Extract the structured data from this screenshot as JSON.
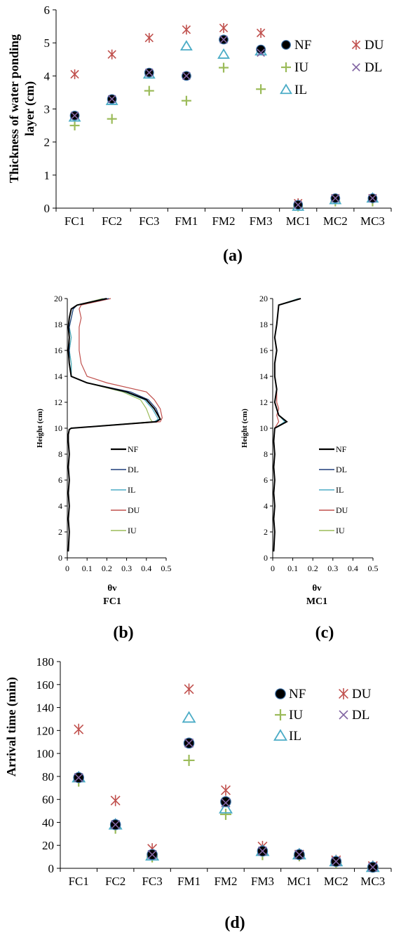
{
  "colors": {
    "NF": "#000000",
    "DU": "#c0504d",
    "IU": "#9bbb59",
    "DL": "#8064a2",
    "IL": "#4bacc6",
    "NF_line": "#000000",
    "DL_line": "#1f3d7a",
    "IL_line": "#4bacc6",
    "DU_line": "#c0504d",
    "IU_line": "#9bbb59"
  },
  "marker_shapes": {
    "NF": "filled-circle",
    "DU": "asterisk",
    "IU": "plus",
    "DL": "x-cross",
    "IL": "open-triangle"
  },
  "chart_data": [
    {
      "panel": "(a)",
      "type": "scatter",
      "ylabel": "Thickness of water ponding layer (cm)",
      "ylabel_lines": [
        "Thickness of water ponding",
        "layer (cm)"
      ],
      "ylim": [
        0,
        6
      ],
      "yticks": [
        "0",
        "1",
        "2",
        "3",
        "4",
        "5",
        "6"
      ],
      "categories": [
        "FC1",
        "FC2",
        "FC3",
        "FM1",
        "FM2",
        "FM3",
        "MC1",
        "MC2",
        "MC3"
      ],
      "legend": [
        "NF",
        "DU",
        "IU",
        "DL",
        "IL"
      ],
      "legend_position": "right",
      "series": [
        {
          "name": "NF",
          "values": [
            2.8,
            3.3,
            4.1,
            4.0,
            5.1,
            4.8,
            0.1,
            0.3,
            0.3
          ]
        },
        {
          "name": "DU",
          "values": [
            4.05,
            4.65,
            5.15,
            5.4,
            5.45,
            5.3,
            0.15,
            0.3,
            0.3
          ]
        },
        {
          "name": "IU",
          "values": [
            2.5,
            2.7,
            3.55,
            3.25,
            4.25,
            3.6,
            0.05,
            0.2,
            0.2
          ]
        },
        {
          "name": "DL",
          "values": [
            2.8,
            3.3,
            4.1,
            4.0,
            5.1,
            4.7,
            0.1,
            0.3,
            0.3
          ]
        },
        {
          "name": "IL",
          "values": [
            2.75,
            3.25,
            4.05,
            4.9,
            4.65,
            4.75,
            0.05,
            0.25,
            0.3
          ]
        }
      ]
    },
    {
      "panel": "(b)",
      "type": "line",
      "caption": "FC1",
      "xlabel": "θv",
      "ylabel": "Height (cm)",
      "xlim": [
        0,
        0.5
      ],
      "ylim": [
        0,
        20
      ],
      "xticks": [
        "0",
        "0.1",
        "0.2",
        "0.3",
        "0.4",
        "0.5"
      ],
      "yticks": [
        "0",
        "2",
        "4",
        "6",
        "8",
        "10",
        "12",
        "14",
        "16",
        "18",
        "20"
      ],
      "legend": [
        "NF",
        "DL",
        "IL",
        "DU",
        "IU"
      ],
      "series": [
        {
          "name": "NF",
          "x": [
            0.005,
            0.01,
            0.005,
            0.01,
            0.005,
            0.01,
            0.005,
            0.01,
            0.005,
            0.005,
            0.01,
            0.02,
            0.45,
            0.47,
            0.44,
            0.4,
            0.3,
            0.1,
            0.02,
            0.01,
            0.005,
            0.01,
            0.005,
            0.01,
            0.02,
            0.05,
            0.2
          ],
          "y": [
            0.5,
            2,
            3,
            4,
            5,
            6,
            7,
            8,
            9,
            9.5,
            9.9,
            10,
            10.5,
            10.7,
            11.5,
            12.2,
            12.8,
            13.5,
            14,
            15,
            16,
            17,
            17.8,
            18.5,
            19.2,
            19.5,
            20
          ]
        },
        {
          "name": "DL",
          "x": [
            0.005,
            0.01,
            0.005,
            0.01,
            0.005,
            0.01,
            0.005,
            0.01,
            0.005,
            0.005,
            0.01,
            0.02,
            0.45,
            0.47,
            0.45,
            0.41,
            0.32,
            0.1,
            0.02,
            0.01,
            0.01,
            0.01,
            0.01,
            0.02,
            0.03,
            0.05,
            0.21
          ],
          "y": [
            0.5,
            2,
            3,
            4,
            5,
            6,
            7,
            8,
            9,
            9.5,
            9.9,
            10,
            10.5,
            10.7,
            11.5,
            12.2,
            12.8,
            13.5,
            14,
            15,
            16,
            17,
            17.8,
            18.5,
            19.2,
            19.5,
            20
          ]
        },
        {
          "name": "IL",
          "x": [
            0.005,
            0.01,
            0.005,
            0.01,
            0.005,
            0.01,
            0.005,
            0.01,
            0.005,
            0.005,
            0.01,
            0.02,
            0.44,
            0.46,
            0.43,
            0.39,
            0.29,
            0.1,
            0.02,
            0.02,
            0.01,
            0.02,
            0.01,
            0.02,
            0.03,
            0.05,
            0.19
          ],
          "y": [
            0.5,
            2,
            3,
            4,
            5,
            6,
            7,
            8,
            9,
            9.5,
            9.9,
            10,
            10.5,
            10.7,
            11.5,
            12.2,
            12.8,
            13.5,
            14,
            15,
            16,
            17,
            17.8,
            18.5,
            19.2,
            19.5,
            20
          ]
        },
        {
          "name": "DU",
          "x": [
            0.005,
            0.01,
            0.005,
            0.01,
            0.005,
            0.01,
            0.005,
            0.01,
            0.005,
            0.005,
            0.01,
            0.02,
            0.47,
            0.48,
            0.47,
            0.44,
            0.4,
            0.2,
            0.1,
            0.07,
            0.06,
            0.06,
            0.06,
            0.07,
            0.06,
            0.07,
            0.22
          ],
          "y": [
            0.5,
            2,
            3,
            4,
            5,
            6,
            7,
            8,
            9,
            9.5,
            9.9,
            10,
            10.5,
            10.8,
            11.5,
            12.2,
            12.8,
            13.5,
            14,
            15,
            16,
            17,
            17.8,
            18.5,
            19.2,
            19.5,
            20
          ]
        },
        {
          "name": "IU",
          "x": [
            0.005,
            0.01,
            0.005,
            0.01,
            0.005,
            0.01,
            0.005,
            0.01,
            0.005,
            0.005,
            0.01,
            0.02,
            0.43,
            0.42,
            0.4,
            0.37,
            0.28,
            0.1,
            0.02,
            0.02,
            0.01,
            0.02,
            0.01,
            0.02,
            0.03,
            0.05,
            0.18
          ],
          "y": [
            0.5,
            2,
            3,
            4,
            5,
            6,
            7,
            8,
            9,
            9.5,
            9.9,
            10,
            10.5,
            10.7,
            11.5,
            12.2,
            12.8,
            13.5,
            14,
            15,
            16,
            17,
            17.8,
            18.5,
            19.2,
            19.5,
            20
          ]
        }
      ]
    },
    {
      "panel": "(c)",
      "type": "line",
      "caption": "MC1",
      "xlabel": "θv",
      "ylabel": "Height (cm)",
      "xlim": [
        0,
        0.5
      ],
      "ylim": [
        0,
        20
      ],
      "xticks": [
        "0",
        "0.1",
        "0.2",
        "0.3",
        "0.4",
        "0.5"
      ],
      "yticks": [
        "0",
        "2",
        "4",
        "6",
        "8",
        "10",
        "12",
        "14",
        "16",
        "18",
        "20"
      ],
      "legend": [
        "NF",
        "DL",
        "IL",
        "DU",
        "IU"
      ],
      "series": [
        {
          "name": "NF",
          "x": [
            0.005,
            0.01,
            0.005,
            0.01,
            0.005,
            0.01,
            0.005,
            0.01,
            0.005,
            0.01,
            0.07,
            0.03,
            0.02,
            0.01,
            0.02,
            0.01,
            0.01,
            0.02,
            0.01,
            0.02,
            0.03,
            0.14
          ],
          "y": [
            0.5,
            2,
            3,
            4,
            5,
            6,
            7,
            8,
            9,
            10,
            10.5,
            11,
            11.5,
            12,
            13,
            14,
            15,
            16,
            17,
            18,
            19.5,
            20
          ]
        },
        {
          "name": "DL",
          "x": [
            0.005,
            0.01,
            0.005,
            0.01,
            0.005,
            0.01,
            0.005,
            0.01,
            0.005,
            0.01,
            0.07,
            0.03,
            0.02,
            0.01,
            0.02,
            0.01,
            0.01,
            0.02,
            0.01,
            0.02,
            0.03,
            0.14
          ],
          "y": [
            0.5,
            2,
            3,
            4,
            5,
            6,
            7,
            8,
            9,
            10,
            10.5,
            11,
            11.5,
            12,
            13,
            14,
            15,
            16,
            17,
            18,
            19.5,
            20
          ]
        },
        {
          "name": "IL",
          "x": [
            0.005,
            0.01,
            0.005,
            0.01,
            0.005,
            0.01,
            0.005,
            0.01,
            0.005,
            0.01,
            0.06,
            0.03,
            0.02,
            0.01,
            0.02,
            0.01,
            0.01,
            0.02,
            0.01,
            0.02,
            0.03,
            0.13
          ],
          "y": [
            0.5,
            2,
            3,
            4,
            5,
            6,
            7,
            8,
            9,
            10,
            10.5,
            11,
            11.5,
            12,
            13,
            14,
            15,
            16,
            17,
            18,
            19.5,
            20
          ]
        },
        {
          "name": "DU",
          "x": [
            0.005,
            0.01,
            0.005,
            0.01,
            0.005,
            0.01,
            0.005,
            0.01,
            0.005,
            0.01,
            0.03,
            0.02,
            0.03,
            0.02,
            0.02,
            0.01,
            0.01,
            0.02,
            0.01,
            0.02,
            0.03,
            0.14
          ],
          "y": [
            0.5,
            2,
            3,
            4,
            5,
            6,
            7,
            8,
            9,
            10,
            10.5,
            11,
            11.5,
            12,
            13,
            14,
            15,
            16,
            17,
            18,
            19.5,
            20
          ]
        },
        {
          "name": "IU",
          "x": [
            0.005,
            0.01,
            0.005,
            0.01,
            0.005,
            0.01,
            0.005,
            0.01,
            0.005,
            0.01,
            0.06,
            0.03,
            0.02,
            0.01,
            0.02,
            0.01,
            0.01,
            0.02,
            0.01,
            0.02,
            0.03,
            0.13
          ],
          "y": [
            0.5,
            2,
            3,
            4,
            5,
            6,
            7,
            8,
            9,
            10,
            10.5,
            11,
            11.5,
            12,
            13,
            14,
            15,
            16,
            17,
            18,
            19.5,
            20
          ]
        }
      ]
    },
    {
      "panel": "(d)",
      "type": "scatter",
      "ylabel": "Arrival time (min)",
      "ylim": [
        0,
        180
      ],
      "yticks": [
        "0",
        "20",
        "40",
        "60",
        "80",
        "100",
        "120",
        "140",
        "160",
        "180"
      ],
      "categories": [
        "FC1",
        "FC2",
        "FC3",
        "FM1",
        "FM2",
        "FM3",
        "MC1",
        "MC2",
        "MC3"
      ],
      "legend": [
        "NF",
        "DU",
        "IU",
        "DL",
        "IL"
      ],
      "legend_position": "right",
      "series": [
        {
          "name": "NF",
          "values": [
            79,
            38,
            12,
            109,
            58,
            15,
            12,
            6,
            1
          ]
        },
        {
          "name": "DU",
          "values": [
            121,
            59,
            17,
            156,
            68,
            19,
            12,
            7,
            2
          ]
        },
        {
          "name": "IU",
          "values": [
            76,
            35,
            10,
            94,
            47,
            12,
            11,
            5,
            1
          ]
        },
        {
          "name": "DL",
          "values": [
            79,
            38,
            12,
            109,
            57,
            15,
            12,
            6,
            1
          ]
        },
        {
          "name": "IL",
          "values": [
            79,
            38,
            11,
            131,
            52,
            15,
            12,
            6,
            1
          ]
        }
      ]
    }
  ]
}
